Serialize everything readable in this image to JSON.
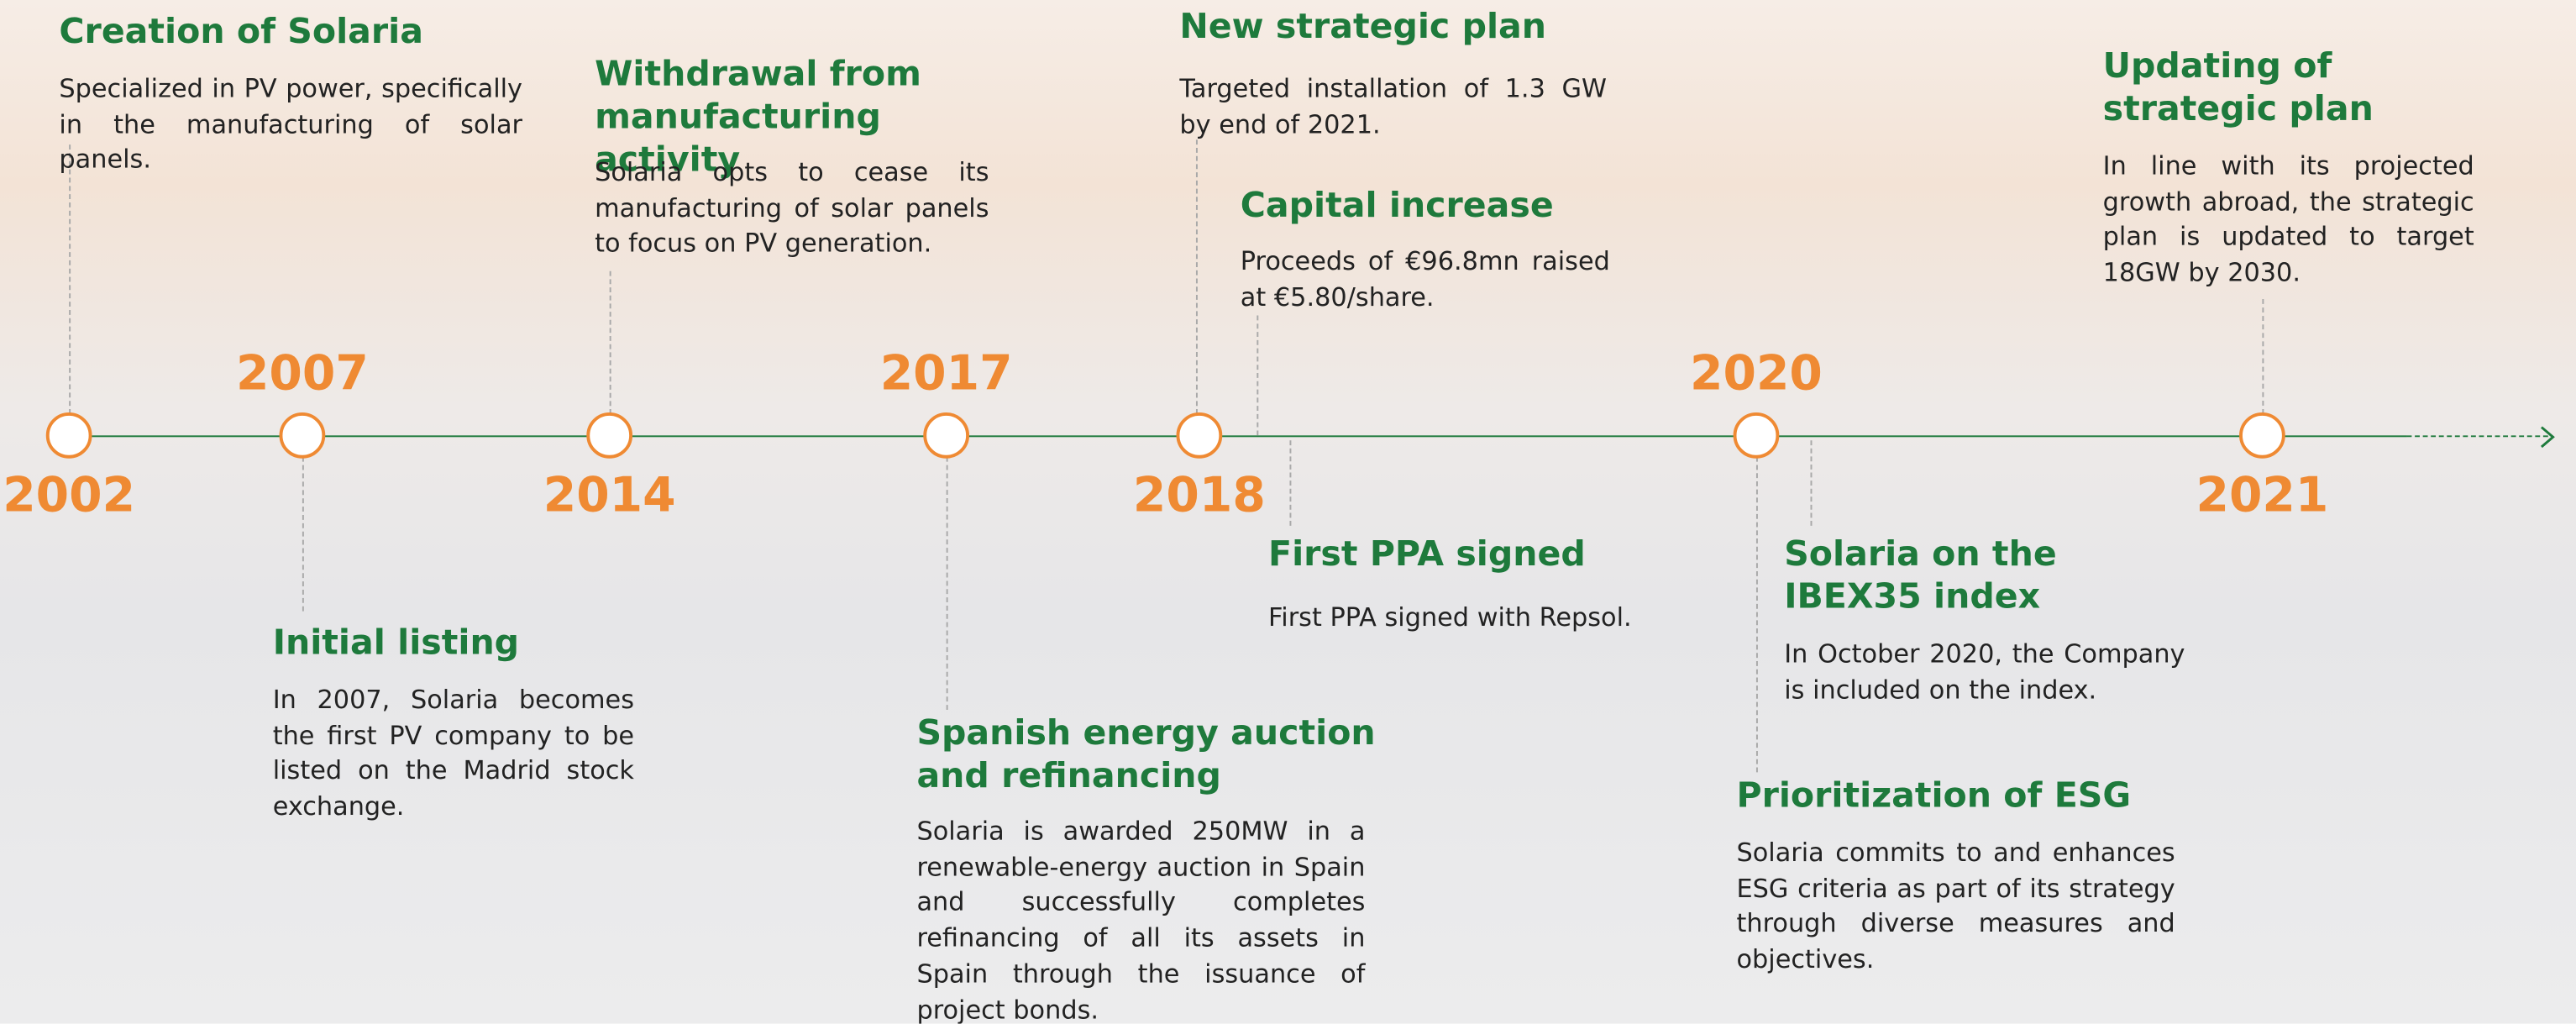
{
  "timeline": {
    "years": [
      "2002",
      "2007",
      "2014",
      "2017",
      "2018",
      "2020",
      "2021"
    ],
    "events": [
      {
        "title": "Creation of Solaria",
        "text": "Specialized in PV power, specifically in the manufacturing of solar panels."
      },
      {
        "title": "Initial listing",
        "text": "In 2007, Solaria becomes the first PV company to be listed on the Madrid stock exchange."
      },
      {
        "title": "Withdrawal from manufacturing activity",
        "text": "Solaria opts to cease its manufacturing of solar panels to focus on PV generation."
      },
      {
        "title": "Spanish energy auction and refinancing",
        "text": "Solaria is awarded 250MW in a renewable-energy auction in Spain and successfully completes refinancing of all its assets in Spain through the issuance of project bonds."
      },
      {
        "title": "New strategic plan",
        "text": "Targeted installation of 1.3 GW by end of 2021."
      },
      {
        "title": "Capital increase",
        "text": "Proceeds of €96.8mn raised at €5.80/share."
      },
      {
        "title": "First PPA signed",
        "text": "First PPA signed with Repsol."
      },
      {
        "title": "Solaria on the IBEX35 index",
        "text": "In October 2020, the Company is included on the index."
      },
      {
        "title": "Prioritization of ESG",
        "text": "Solaria commits to and enhances ESG criteria as part of its strategy through diverse measures and objectives."
      },
      {
        "title": "Updating of strategic plan",
        "text": "In line with its projected growth abroad, the strategic plan is updated to target 18GW by 2030."
      }
    ]
  }
}
